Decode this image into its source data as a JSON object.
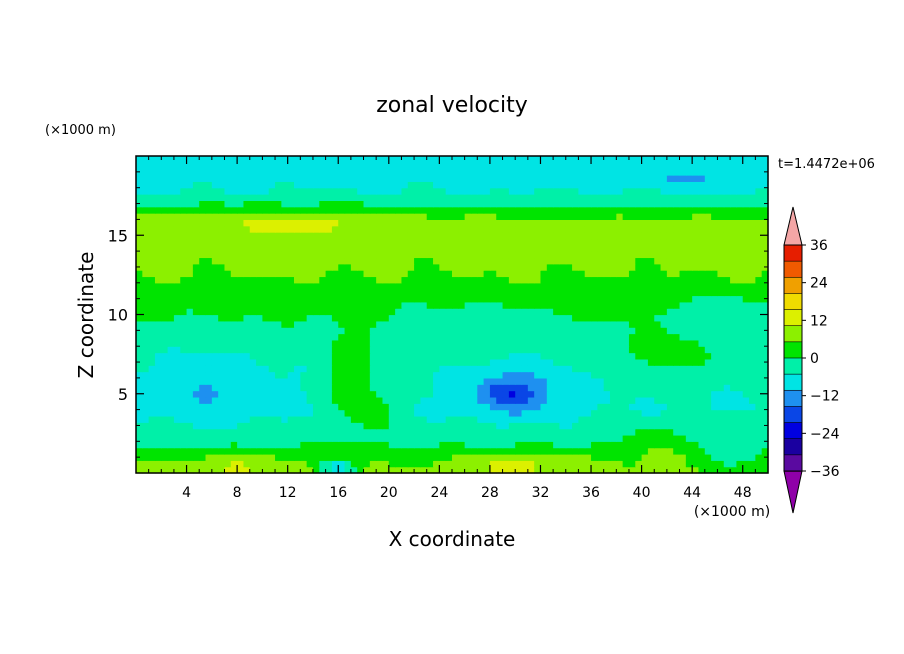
{
  "chart_data": {
    "type": "heatmap",
    "title": "zonal velocity",
    "xlabel": "X coordinate",
    "ylabel": "Z coordinate",
    "x_unit": "(×1000 m)",
    "y_unit": "(×1000 m)",
    "time_label": "t=1.4472e+06",
    "xlim": [
      0,
      50
    ],
    "ylim": [
      0,
      20
    ],
    "x_ticks": [
      "4",
      "8",
      "12",
      "16",
      "20",
      "24",
      "28",
      "32",
      "36",
      "40",
      "44",
      "48"
    ],
    "y_ticks": [
      "5",
      "10",
      "15"
    ],
    "colorbar": {
      "levels": [
        -42,
        -36,
        -30,
        -24,
        -18,
        -12,
        -6,
        0,
        6,
        12,
        18,
        24,
        30,
        36,
        42
      ],
      "tick_labels": [
        "36",
        "24",
        "12",
        "0",
        "−12",
        "−24",
        "−36"
      ],
      "colors": {
        "under": "#8f00a8",
        "over": "#f4a6a6",
        "bands": [
          "#5a0aa0",
          "#1a00a0",
          "#0000e0",
          "#0a46e6",
          "#1e90f0",
          "#00e4e4",
          "#00f0a8",
          "#00e400",
          "#8cf000",
          "#dcf000",
          "#f0dc00",
          "#f0a000",
          "#f05a00",
          "#e61e00"
        ]
      }
    },
    "field": {
      "background_u": [
        {
          "z": 0.0,
          "u": 8
        },
        {
          "z": 1.0,
          "u": 4
        },
        {
          "z": 2.2,
          "u": -3
        },
        {
          "z": 4.0,
          "u": -6
        },
        {
          "z": 6.5,
          "u": -5
        },
        {
          "z": 9.0,
          "u": -2
        },
        {
          "z": 10.5,
          "u": 2
        },
        {
          "z": 12.5,
          "u": 6
        },
        {
          "z": 14.5,
          "u": 8
        },
        {
          "z": 16.0,
          "u": 7
        },
        {
          "z": 16.8,
          "u": 0
        },
        {
          "z": 17.8,
          "u": -6
        },
        {
          "z": 19.0,
          "u": -8
        },
        {
          "z": 20.0,
          "u": -7
        }
      ],
      "features": [
        {
          "x": 30.0,
          "z": 5.2,
          "sx": 3.8,
          "sz": 1.6,
          "amp": -12
        },
        {
          "x": 29.5,
          "z": 5.0,
          "sx": 2.0,
          "sz": 0.7,
          "amp": -6
        },
        {
          "x": 6.0,
          "z": 5.5,
          "sx": 5.5,
          "sz": 2.5,
          "amp": -5
        },
        {
          "x": 5.5,
          "z": 5.0,
          "sx": 0.8,
          "sz": 0.4,
          "amp": -8
        },
        {
          "x": 17.0,
          "z": 6.0,
          "sx": 2.2,
          "sz": 3.0,
          "amp": 8
        },
        {
          "x": 19.0,
          "z": 4.0,
          "sx": 1.8,
          "sz": 1.5,
          "amp": 6
        },
        {
          "x": 42.0,
          "z": 7.5,
          "sx": 4.0,
          "sz": 1.5,
          "amp": 6
        },
        {
          "x": 41.0,
          "z": 2.0,
          "sx": 3.0,
          "sz": 1.2,
          "amp": 6
        },
        {
          "x": 8.0,
          "z": 0.5,
          "sx": 4.5,
          "sz": 0.8,
          "amp": 6
        },
        {
          "x": 30.0,
          "z": 0.6,
          "sx": 4.0,
          "sz": 0.8,
          "amp": 8
        },
        {
          "x": 16.0,
          "z": 0.3,
          "sx": 1.5,
          "sz": 0.6,
          "amp": -16
        },
        {
          "x": 47.0,
          "z": 1.0,
          "sx": 2.0,
          "sz": 1.0,
          "amp": -8
        },
        {
          "x": 12.0,
          "z": 15.8,
          "sx": 9.0,
          "sz": 1.0,
          "amp": 6
        },
        {
          "x": 44.0,
          "z": 18.5,
          "sx": 3.0,
          "sz": 0.5,
          "amp": -6
        },
        {
          "x": 46.0,
          "z": 10.5,
          "sx": 4.0,
          "sz": 1.0,
          "amp": -5
        },
        {
          "x": 26.0,
          "z": 10.0,
          "sx": 5.0,
          "sz": 1.0,
          "amp": -4
        }
      ]
    }
  }
}
